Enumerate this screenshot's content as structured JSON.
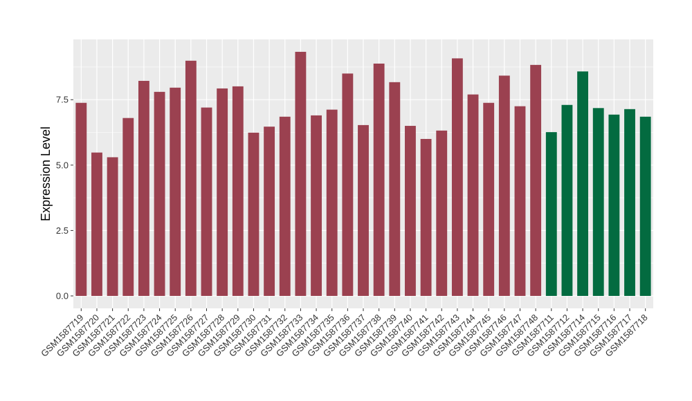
{
  "chart_data": {
    "type": "bar",
    "title": "",
    "xlabel": "",
    "ylabel": "Expression Level",
    "ylim": [
      -0.35,
      9.9
    ],
    "yticks": [
      0.0,
      2.5,
      5.0,
      7.5
    ],
    "ytick_labels": [
      "0.0",
      "2.5",
      "5.0",
      "7.5"
    ],
    "grid": true,
    "legend": "none",
    "categories": [
      "GSM1587719",
      "GSM1587720",
      "GSM1587721",
      "GSM1587722",
      "GSM1587723",
      "GSM1587724",
      "GSM1587725",
      "GSM1587726",
      "GSM1587727",
      "GSM1587728",
      "GSM1587729",
      "GSM1587730",
      "GSM1587731",
      "GSM1587732",
      "GSM1587733",
      "GSM1587734",
      "GSM1587735",
      "GSM1587736",
      "GSM1587737",
      "GSM1587738",
      "GSM1587739",
      "GSM1587740",
      "GSM1587741",
      "GSM1587742",
      "GSM1587743",
      "GSM1587744",
      "GSM1587745",
      "GSM1587746",
      "GSM1587747",
      "GSM1587748",
      "GSM1587711",
      "GSM1587712",
      "GSM1587714",
      "GSM1587715",
      "GSM1587716",
      "GSM1587717",
      "GSM1587718"
    ],
    "values": [
      7.38,
      5.48,
      5.3,
      6.8,
      8.22,
      7.8,
      7.96,
      8.99,
      7.2,
      7.93,
      8.01,
      6.24,
      6.47,
      6.85,
      9.33,
      6.9,
      7.12,
      8.5,
      6.53,
      8.88,
      8.17,
      6.5,
      6.0,
      6.32,
      9.08,
      7.7,
      7.38,
      8.42,
      7.25,
      8.83,
      6.26,
      7.3,
      8.58,
      7.18,
      6.93,
      7.14,
      6.85
    ],
    "groups": [
      "a",
      "a",
      "a",
      "a",
      "a",
      "a",
      "a",
      "a",
      "a",
      "a",
      "a",
      "a",
      "a",
      "a",
      "a",
      "a",
      "a",
      "a",
      "a",
      "a",
      "a",
      "a",
      "a",
      "a",
      "a",
      "a",
      "a",
      "a",
      "a",
      "a",
      "b",
      "b",
      "b",
      "b",
      "b",
      "b",
      "b"
    ],
    "colors": {
      "a": "#9b4150",
      "b": "#036b40",
      "panel": "#ebebeb",
      "grid": "#ffffff"
    }
  }
}
